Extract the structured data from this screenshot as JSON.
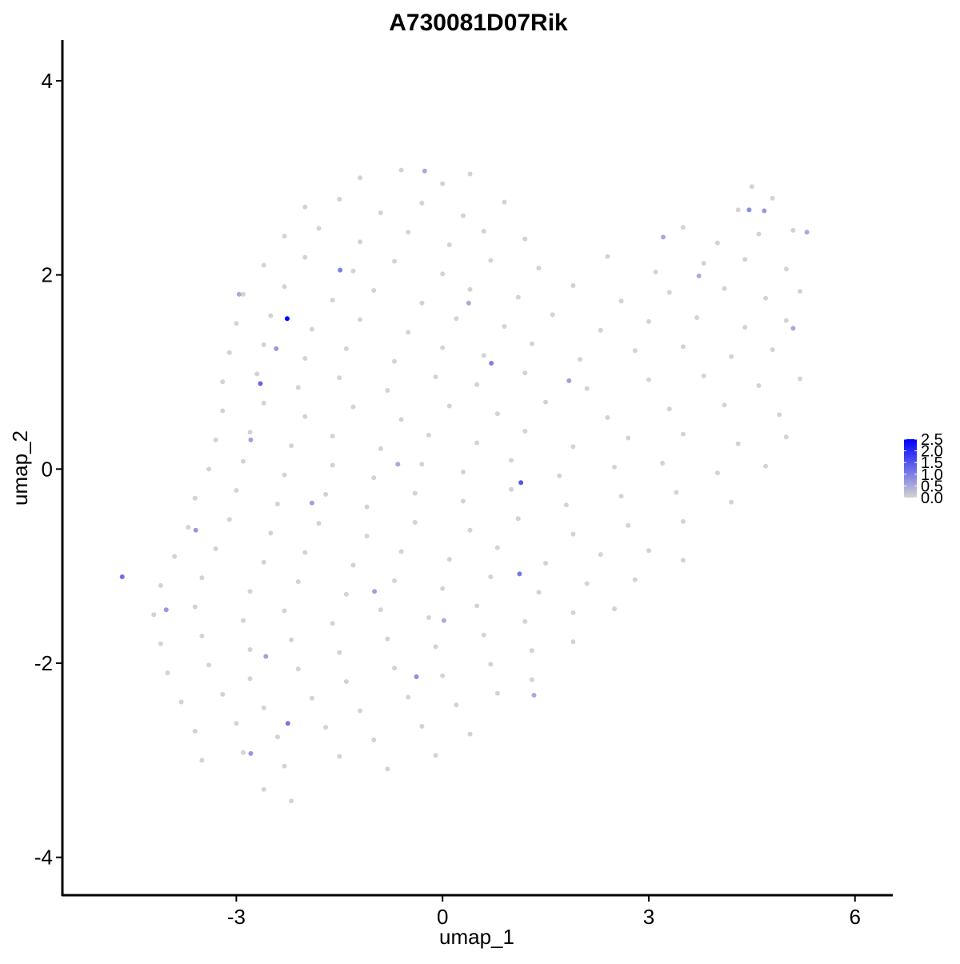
{
  "chart_data": {
    "type": "scatter",
    "title": "A730081D07Rik",
    "x_label": "umap_1",
    "y_label": "umap_2",
    "xlim": [
      -5.53,
      6.55
    ],
    "ylim": [
      -4.39,
      4.42
    ],
    "xticks": [
      -3,
      0,
      3,
      6
    ],
    "yticks": [
      -4,
      -2,
      0,
      2,
      4
    ],
    "color_low": "#d3d3d3",
    "color_high": "#0000ff",
    "clim": [
      0,
      2.5
    ],
    "cticks": [
      {
        "value": 0,
        "label": "0.0"
      },
      {
        "value": 0.5,
        "label": "0.5"
      },
      {
        "value": 1,
        "label": "1.0"
      },
      {
        "value": 1.5,
        "label": "1.5"
      },
      {
        "value": 2,
        "label": "2.0"
      },
      {
        "value": 2.5,
        "label": "2.5"
      }
    ],
    "x": [
      -1.2,
      -0.6,
      0.0,
      0.4,
      4.5,
      -2.0,
      -1.5,
      -0.9,
      -0.3,
      0.3,
      0.9,
      4.3,
      4.8,
      -2.3,
      -1.8,
      -1.2,
      -0.5,
      0.1,
      0.6,
      1.2,
      3.5,
      4.0,
      4.6,
      5.1,
      -2.6,
      -2.0,
      -1.3,
      -0.7,
      0.0,
      0.7,
      1.4,
      2.4,
      3.1,
      3.8,
      4.4,
      5.0,
      -2.9,
      -2.3,
      -1.6,
      -1.0,
      -0.3,
      0.4,
      1.1,
      1.9,
      2.6,
      3.3,
      4.1,
      4.7,
      5.2,
      -3.0,
      -2.5,
      -1.9,
      -1.2,
      -0.5,
      0.2,
      0.9,
      1.6,
      2.3,
      3.0,
      3.7,
      4.4,
      5.0,
      -3.1,
      -2.6,
      -2.0,
      -1.4,
      -0.7,
      0.0,
      0.6,
      1.3,
      2.0,
      2.8,
      3.5,
      4.2,
      4.8,
      -3.2,
      -2.7,
      -2.1,
      -1.5,
      -0.8,
      -0.1,
      0.5,
      1.2,
      2.1,
      3.0,
      3.8,
      4.6,
      5.2,
      -3.2,
      -2.6,
      -2.0,
      -1.3,
      -0.6,
      0.1,
      0.8,
      1.5,
      2.4,
      3.3,
      4.1,
      4.9,
      -3.3,
      -2.8,
      -2.2,
      -1.6,
      -0.9,
      -0.2,
      0.5,
      1.2,
      1.9,
      2.7,
      3.5,
      4.3,
      5.0,
      -3.4,
      -2.9,
      -2.3,
      -1.6,
      -1.0,
      -0.3,
      0.3,
      1.0,
      1.7,
      2.5,
      3.2,
      4.0,
      4.7,
      -3.6,
      -3.0,
      -2.4,
      -1.7,
      -1.1,
      -0.4,
      0.3,
      1.0,
      1.8,
      2.6,
      3.4,
      4.2,
      -3.7,
      -3.1,
      -2.5,
      -1.8,
      -1.1,
      -0.4,
      0.4,
      1.1,
      1.9,
      2.7,
      3.5,
      -3.9,
      -3.3,
      -2.6,
      -2.0,
      -1.3,
      -0.6,
      0.1,
      0.8,
      1.5,
      2.3,
      3.0,
      3.5,
      -4.1,
      -3.5,
      -2.8,
      -2.1,
      -1.4,
      -0.7,
      0.0,
      0.7,
      1.4,
      2.1,
      2.8,
      -4.2,
      -3.6,
      -2.9,
      -2.3,
      -1.6,
      -0.9,
      -0.2,
      0.5,
      1.2,
      1.9,
      2.5,
      -4.1,
      -3.5,
      -2.8,
      -2.2,
      -1.5,
      -0.8,
      -0.1,
      0.6,
      1.3,
      1.9,
      -4.0,
      -3.4,
      -2.8,
      -2.1,
      -1.4,
      -0.7,
      0.0,
      0.7,
      1.3,
      -3.8,
      -3.2,
      -2.6,
      -1.9,
      -1.2,
      -0.5,
      0.2,
      0.8,
      -3.6,
      -3.0,
      -2.4,
      -1.7,
      -1.0,
      -0.3,
      0.4,
      -3.5,
      -2.9,
      -2.3,
      -1.5,
      -0.8,
      -0.1,
      -2.6,
      -2.2,
      -4.66,
      -2.26,
      -1.49,
      -2.65,
      1.14,
      1.12,
      0.71,
      -2.25,
      -0.38,
      -3.59,
      -4.02,
      4.46,
      4.68,
      1.84,
      -2.79,
      -2.96,
      -2.42,
      -0.99,
      -1.9,
      -0.65,
      0.38,
      -0.26,
      0.02,
      1.33,
      3.21,
      3.73,
      5.1,
      5.3,
      -2.79,
      -2.57
    ],
    "y": [
      3.0,
      3.08,
      2.94,
      3.04,
      2.91,
      2.7,
      2.78,
      2.64,
      2.74,
      2.61,
      2.75,
      2.67,
      2.79,
      2.4,
      2.48,
      2.34,
      2.44,
      2.31,
      2.45,
      2.37,
      2.49,
      2.33,
      2.42,
      2.46,
      2.1,
      2.18,
      2.04,
      2.14,
      2.01,
      2.15,
      2.07,
      2.19,
      2.03,
      2.12,
      2.16,
      2.06,
      1.8,
      1.88,
      1.74,
      1.84,
      1.71,
      1.85,
      1.77,
      1.89,
      1.73,
      1.82,
      1.86,
      1.76,
      1.83,
      1.5,
      1.58,
      1.44,
      1.54,
      1.41,
      1.55,
      1.47,
      1.59,
      1.43,
      1.52,
      1.56,
      1.46,
      1.53,
      1.2,
      1.28,
      1.14,
      1.24,
      1.11,
      1.25,
      1.17,
      1.29,
      1.13,
      1.22,
      1.26,
      1.16,
      1.23,
      0.9,
      0.98,
      0.84,
      0.94,
      0.81,
      0.95,
      0.87,
      0.99,
      0.83,
      0.92,
      0.96,
      0.86,
      0.93,
      0.6,
      0.68,
      0.54,
      0.64,
      0.51,
      0.65,
      0.57,
      0.69,
      0.53,
      0.62,
      0.66,
      0.56,
      0.3,
      0.38,
      0.24,
      0.34,
      0.21,
      0.35,
      0.27,
      0.39,
      0.23,
      0.32,
      0.36,
      0.26,
      0.33,
      0.0,
      0.08,
      -0.06,
      0.04,
      -0.09,
      0.05,
      -0.03,
      0.09,
      -0.07,
      0.02,
      0.06,
      -0.04,
      0.03,
      -0.3,
      -0.22,
      -0.36,
      -0.26,
      -0.39,
      -0.25,
      -0.33,
      -0.21,
      -0.37,
      -0.28,
      -0.24,
      -0.34,
      -0.6,
      -0.52,
      -0.66,
      -0.56,
      -0.69,
      -0.55,
      -0.63,
      -0.51,
      -0.67,
      -0.58,
      -0.54,
      -0.9,
      -0.82,
      -0.96,
      -0.86,
      -0.99,
      -0.85,
      -0.93,
      -0.81,
      -0.97,
      -0.88,
      -0.84,
      -0.94,
      -1.2,
      -1.12,
      -1.26,
      -1.16,
      -1.29,
      -1.15,
      -1.23,
      -1.11,
      -1.27,
      -1.18,
      -1.14,
      -1.5,
      -1.42,
      -1.56,
      -1.46,
      -1.59,
      -1.45,
      -1.53,
      -1.41,
      -1.57,
      -1.48,
      -1.44,
      -1.8,
      -1.72,
      -1.86,
      -1.76,
      -1.89,
      -1.75,
      -1.83,
      -1.71,
      -1.87,
      -1.78,
      -2.1,
      -2.02,
      -2.16,
      -2.06,
      -2.19,
      -2.05,
      -2.13,
      -2.01,
      -2.17,
      -2.4,
      -2.32,
      -2.46,
      -2.36,
      -2.49,
      -2.35,
      -2.43,
      -2.31,
      -2.7,
      -2.62,
      -2.76,
      -2.66,
      -2.79,
      -2.65,
      -2.73,
      -3.0,
      -2.92,
      -3.06,
      -2.96,
      -3.09,
      -2.95,
      -3.3,
      -3.42,
      -1.11,
      1.55,
      2.05,
      0.88,
      -0.14,
      -1.08,
      1.09,
      -2.62,
      -2.14,
      -0.63,
      -1.45,
      2.67,
      2.66,
      0.91,
      -2.93,
      1.8,
      1.24,
      -1.26,
      -0.35,
      0.05,
      1.71,
      3.07,
      -1.56,
      -2.33,
      2.39,
      1.99,
      1.45,
      2.44,
      0.3,
      -1.93
    ],
    "values": [
      0,
      0,
      0,
      0,
      0,
      0,
      0,
      0,
      0,
      0,
      0,
      0,
      0,
      0,
      0,
      0,
      0,
      0,
      0,
      0,
      0,
      0,
      0,
      0,
      0,
      0,
      0,
      0,
      0,
      0,
      0,
      0,
      0,
      0,
      0,
      0,
      0,
      0,
      0,
      0,
      0,
      0,
      0,
      0,
      0,
      0,
      0,
      0,
      0,
      0,
      0,
      0,
      0,
      0,
      0,
      0,
      0,
      0,
      0,
      0,
      0,
      0,
      0,
      0,
      0,
      0,
      0,
      0,
      0,
      0,
      0,
      0,
      0,
      0,
      0,
      0,
      0,
      0,
      0,
      0,
      0,
      0,
      0,
      0,
      0,
      0,
      0,
      0,
      0,
      0,
      0,
      0,
      0,
      0,
      0,
      0,
      0,
      0,
      0,
      0,
      0,
      0,
      0,
      0,
      0,
      0,
      0,
      0,
      0,
      0,
      0,
      0,
      0,
      0,
      0,
      0,
      0,
      0,
      0,
      0,
      0,
      0,
      0,
      0,
      0,
      0,
      0,
      0,
      0,
      0,
      0,
      0,
      0,
      0,
      0,
      0,
      0,
      0,
      0,
      0,
      0,
      0,
      0,
      0,
      0,
      0,
      0,
      0,
      0,
      0,
      0,
      0,
      0,
      0,
      0,
      0,
      0,
      0,
      0,
      0,
      0,
      0,
      0,
      0,
      0,
      0,
      0,
      0,
      0,
      0,
      0,
      0,
      0,
      0,
      0,
      0,
      0,
      0,
      0,
      0,
      0,
      0,
      0,
      0,
      0,
      0,
      0,
      0,
      0,
      0,
      0,
      0,
      0,
      0,
      0,
      0,
      0,
      0,
      0,
      0,
      0,
      0,
      0,
      0,
      0,
      0,
      0,
      0,
      0,
      0,
      0,
      0,
      0,
      0,
      0,
      0,
      0,
      0,
      0,
      0,
      0,
      0,
      0,
      0,
      0,
      1.2,
      2.5,
      1.0,
      1.3,
      1.5,
      1.1,
      1.0,
      1.1,
      0.8,
      0.7,
      0.7,
      0.8,
      0.7,
      0.6,
      0.7,
      0.5,
      0.7,
      0.6,
      0.6,
      0.5,
      0.5,
      0.5,
      0.5,
      0.5,
      0.5,
      0.5,
      0.5,
      0.5,
      0.6,
      0.6
    ]
  }
}
